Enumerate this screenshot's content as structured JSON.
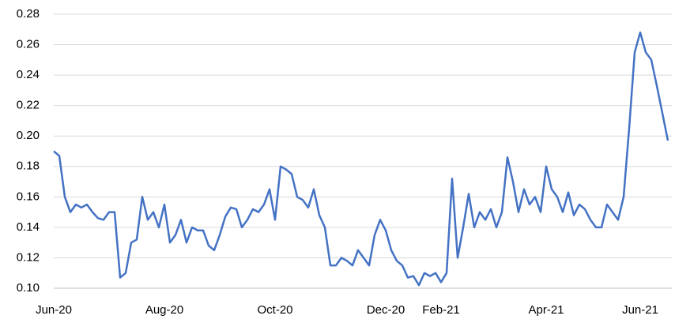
{
  "chart_data": {
    "type": "line",
    "categories": [
      "Jun-20",
      null,
      null,
      null,
      null,
      null,
      null,
      null,
      null,
      null,
      null,
      null,
      null,
      null,
      null,
      null,
      null,
      null,
      null,
      null,
      "Aug-20",
      null,
      null,
      null,
      null,
      null,
      null,
      null,
      null,
      null,
      null,
      null,
      null,
      null,
      null,
      null,
      null,
      null,
      null,
      null,
      "Oct-20",
      null,
      null,
      null,
      null,
      null,
      null,
      null,
      null,
      null,
      null,
      null,
      null,
      null,
      null,
      null,
      null,
      null,
      null,
      null,
      "Dec-20",
      null,
      null,
      null,
      null,
      null,
      null,
      null,
      null,
      null,
      "Feb-21",
      null,
      null,
      null,
      null,
      null,
      null,
      null,
      null,
      null,
      null,
      null,
      null,
      null,
      null,
      null,
      null,
      null,
      null,
      "Apr-21",
      null,
      null,
      null,
      null,
      null,
      null,
      null,
      null,
      null,
      null,
      null,
      null,
      null,
      null,
      null,
      null,
      "Jun-21",
      null,
      null,
      null,
      null,
      null
    ],
    "series": [
      {
        "color": "#4472c4",
        "values": [
          0.19,
          0.187,
          0.16,
          0.15,
          0.155,
          0.153,
          0.155,
          0.15,
          0.146,
          0.145,
          0.15,
          0.15,
          0.107,
          0.11,
          0.13,
          0.132,
          0.16,
          0.145,
          0.15,
          0.14,
          0.155,
          0.13,
          0.135,
          0.145,
          0.13,
          0.14,
          0.138,
          0.138,
          0.128,
          0.125,
          0.135,
          0.147,
          0.153,
          0.152,
          0.14,
          0.145,
          0.152,
          0.15,
          0.155,
          0.165,
          0.145,
          0.18,
          0.178,
          0.175,
          0.16,
          0.158,
          0.153,
          0.165,
          0.148,
          0.14,
          0.115,
          0.115,
          0.12,
          0.118,
          0.115,
          0.125,
          0.12,
          0.115,
          0.135,
          0.145,
          0.138,
          0.125,
          0.118,
          0.115,
          0.107,
          0.108,
          0.102,
          0.11,
          0.108,
          0.11,
          0.104,
          0.11,
          0.172,
          0.12,
          0.14,
          0.162,
          0.14,
          0.15,
          0.145,
          0.152,
          0.14,
          0.15,
          0.186,
          0.17,
          0.15,
          0.165,
          0.155,
          0.16,
          0.15,
          0.18,
          0.165,
          0.16,
          0.15,
          0.163,
          0.148,
          0.155,
          0.152,
          0.145,
          0.14,
          0.14,
          0.155,
          0.15,
          0.145,
          0.16,
          0.205,
          0.255,
          0.268,
          0.255,
          0.25,
          0.233,
          0.215,
          0.197
        ]
      }
    ],
    "ylim": [
      0.1,
      0.28
    ],
    "yticks": [
      {
        "value": 0.1,
        "label": "0.10"
      },
      0.12,
      0.14,
      0.16,
      0.18,
      {
        "value": 0.2,
        "label": "0.20"
      },
      0.22,
      0.24,
      0.26,
      0.28
    ],
    "grid": true
  }
}
